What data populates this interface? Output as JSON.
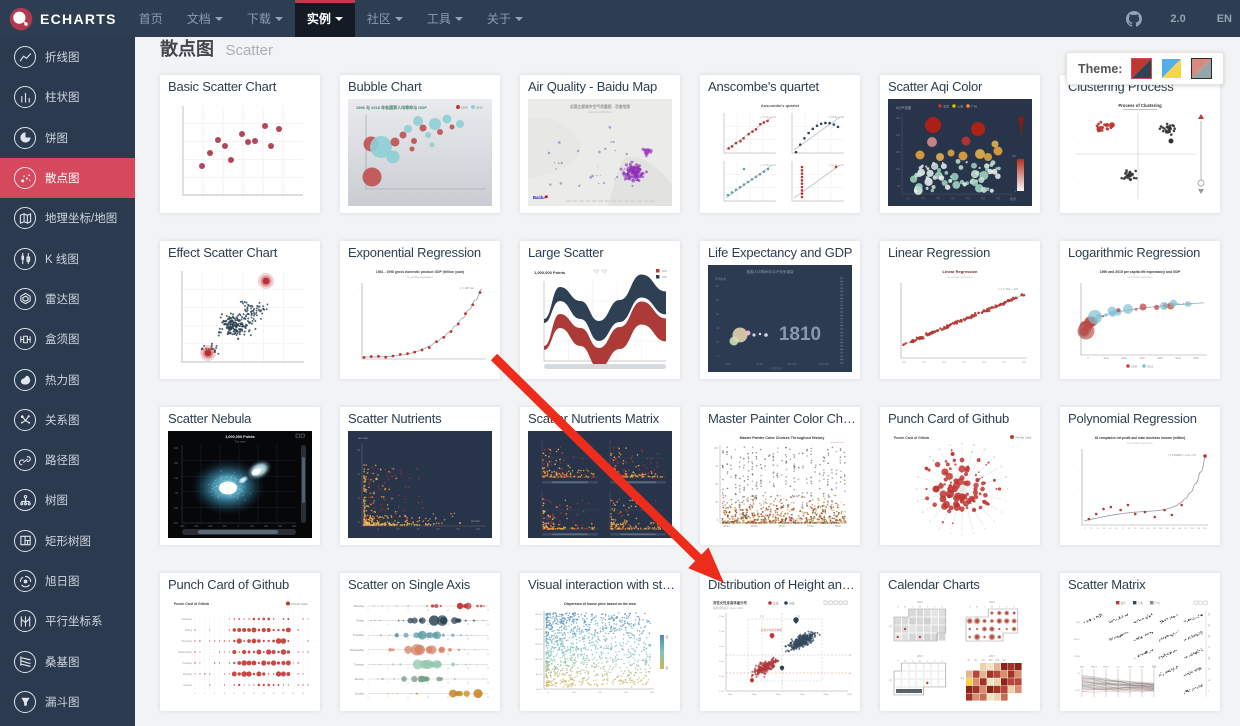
{
  "navbar": {
    "logo_text": "ECHARTS",
    "items": [
      {
        "label": "首页",
        "caret": false,
        "active": false
      },
      {
        "label": "文档",
        "caret": true,
        "active": false
      },
      {
        "label": "下载",
        "caret": true,
        "active": false
      },
      {
        "label": "实例",
        "caret": true,
        "active": true
      },
      {
        "label": "社区",
        "caret": true,
        "active": false
      },
      {
        "label": "工具",
        "caret": true,
        "active": false
      },
      {
        "label": "关于",
        "caret": true,
        "active": false
      }
    ],
    "version": "2.0",
    "lang": "EN"
  },
  "sidebar": {
    "items": [
      {
        "label": "折线图",
        "icon": "line-chart-icon",
        "active": false
      },
      {
        "label": "柱状图",
        "icon": "bar-chart-icon",
        "active": false
      },
      {
        "label": "饼图",
        "icon": "pie-chart-icon",
        "active": false
      },
      {
        "label": "散点图",
        "icon": "scatter-chart-icon",
        "active": true
      },
      {
        "label": "地理坐标/地图",
        "icon": "map-icon",
        "active": false
      },
      {
        "label": "K 线图",
        "icon": "candlestick-icon",
        "active": false
      },
      {
        "label": "雷达图",
        "icon": "radar-icon",
        "active": false
      },
      {
        "label": "盒须图",
        "icon": "boxplot-icon",
        "active": false
      },
      {
        "label": "热力图",
        "icon": "heatmap-icon",
        "active": false
      },
      {
        "label": "关系图",
        "icon": "graph-icon",
        "active": false
      },
      {
        "label": "路径图",
        "icon": "lines-icon",
        "active": false
      },
      {
        "label": "树图",
        "icon": "tree-icon",
        "active": false
      },
      {
        "label": "矩形树图",
        "icon": "treemap-icon",
        "active": false
      },
      {
        "label": "旭日图",
        "icon": "sunburst-icon",
        "active": false
      },
      {
        "label": "平行坐标系",
        "icon": "parallel-icon",
        "active": false
      },
      {
        "label": "桑基图",
        "icon": "sankey-icon",
        "active": false
      },
      {
        "label": "漏斗图",
        "icon": "funnel-icon",
        "active": false
      }
    ]
  },
  "page": {
    "title_zh": "散点图",
    "title_en": "Scatter"
  },
  "theme_panel": {
    "label": "Theme:",
    "themes": [
      {
        "name": "default",
        "colors": [
          "#c23531",
          "#2f4554"
        ],
        "selected": true,
        "dark_border": false
      },
      {
        "name": "shine",
        "colors": [
          "#54aeea",
          "#f7d54e"
        ],
        "selected": false,
        "dark_border": false
      },
      {
        "name": "vintage",
        "colors": [
          "#d88a80",
          "#96a5a8"
        ],
        "selected": false,
        "dark_border": true
      }
    ]
  },
  "annotation": {
    "type": "red-arrow",
    "from": [
      494,
      357
    ],
    "to": [
      724,
      583
    ],
    "color": "#ed2c1c"
  },
  "cards": [
    {
      "title": "Basic Scatter Chart",
      "thumb": {
        "kind": "basic"
      }
    },
    {
      "title": "Bubble Chart",
      "thumb": {
        "kind": "bubble",
        "label": "1990 与 2015 年各国家人均寿命与 GDP",
        "legend": [
          "1990",
          "2015"
        ]
      }
    },
    {
      "title": "Air Quality - Baidu Map",
      "thumb": {
        "kind": "airmap",
        "label": "全国主要城市空气质量图 · 百度地图",
        "sub": "data from PM25.in",
        "attribution": "Baidu © 2018 Baidu - GS(2016)2089"
      }
    },
    {
      "title": "Anscombe's quartet",
      "thumb": {
        "kind": "anscombe",
        "label": "Anscombe's quartet"
      }
    },
    {
      "title": "Scatter Aqi Color",
      "thumb": {
        "kind": "aqi",
        "label": "AQI气泡图",
        "legend": [
          "北京",
          "上海",
          "广州"
        ],
        "axis_label": "数值"
      }
    },
    {
      "title": "Clustering Process",
      "thumb": {
        "kind": "clustering",
        "label": "Process of Clustering"
      }
    },
    {
      "title": "Effect Scatter Chart",
      "thumb": {
        "kind": "effect"
      }
    },
    {
      "title": "Exponential Regression",
      "thumb": {
        "kind": "expreg",
        "label": "1981 - 1998 gross domestic product GDP (trillion yuan)",
        "sub": "by ecStat.regression",
        "formula": "y = 907.2e"
      }
    },
    {
      "title": "Large Scatter",
      "thumb": {
        "kind": "largescatter",
        "label": "1,000,000 Points"
      }
    },
    {
      "title": "Life Expectancy and GDP",
      "thumb": {
        "kind": "lifeexp",
        "label": "各国人均寿命与GDP关系演变",
        "ylabel": "平均寿命",
        "xlabel": "人均GDP",
        "year": "1810"
      }
    },
    {
      "title": "Linear Regression",
      "thumb": {
        "kind": "linreg",
        "label": "Linear Regression",
        "sub": "by ecStat.regression",
        "formula": "y = 1.761 + 0.6"
      }
    },
    {
      "title": "Logarithmic Regression",
      "thumb": {
        "kind": "logreg",
        "label": "1990 and 2015 per capita life expectancy and GDP",
        "sub": "by ecStat.regression",
        "formula": "y = 28.65 + 6.9ln(x)",
        "legend": [
          "1990",
          "2015"
        ]
      }
    },
    {
      "title": "Scatter Nebula",
      "thumb": {
        "kind": "nebula",
        "label": "1,000,000 Points",
        "sub": "Test case"
      }
    },
    {
      "title": "Scatter Nutrients",
      "thumb": {
        "kind": "nutrients",
        "ylabel": "amount",
        "xlabel": "protein"
      }
    },
    {
      "title": "Scatter Nutrients Matrix",
      "thumb": {
        "kind": "nutrientsmatrix"
      }
    },
    {
      "title": "Master Painter Color Ch…",
      "thumb": {
        "kind": "masterpainter",
        "label": "Master Painter Color Choices Throughout History"
      }
    },
    {
      "title": "Punch Card of Github",
      "thumb": {
        "kind": "punchpolar",
        "label": "Punch Card of Github",
        "legend": "Punch Card"
      }
    },
    {
      "title": "Polynomial Regression",
      "thumb": {
        "kind": "polyreg",
        "label": "18 companies net profit and main business income (million)",
        "sub": "by ecStat.regression"
      }
    },
    {
      "title": "Punch Card of Github",
      "thumb": {
        "kind": "punchcard",
        "label": "Punch Card of Github",
        "legend": "Punch Card",
        "days": [
          "Sunday",
          "Monday",
          "Tuesday",
          "Wednesday",
          "Thursday",
          "Friday",
          "Saturday"
        ]
      }
    },
    {
      "title": "Scatter on Single Axis",
      "thumb": {
        "kind": "singleaxis",
        "days": [
          "Saturday",
          "Friday",
          "Thursday",
          "Wednesday",
          "Tuesday",
          "Monday",
          "Sunday"
        ]
      }
    },
    {
      "title": "Visual interaction with st…",
      "thumb": {
        "kind": "visualmap",
        "label": "Dispersion of house price based on the area",
        "visualmap_high": "高",
        "visualmap_low": "低"
      }
    },
    {
      "title": "Distribution of Height an…",
      "thumb": {
        "kind": "heightweight",
        "label": "男性女性身高体重分布",
        "sub": "抽样调查来自: Heinz 2003",
        "legend": [
          "女性",
          "男性"
        ],
        "annotation": "女性平均身高体重"
      }
    },
    {
      "title": "Calendar Charts",
      "thumb": {
        "kind": "calendar",
        "year": "2017",
        "month_label": "1月"
      }
    },
    {
      "title": "Scatter Matrix",
      "thumb": {
        "kind": "scattermatrix",
        "legend": [
          "北京",
          "上海",
          "广州"
        ],
        "parallel_axes": [
          "AQI",
          "PM2.5",
          "PM10",
          "CO",
          "NO2",
          "SO2",
          "等级"
        ]
      }
    }
  ]
}
